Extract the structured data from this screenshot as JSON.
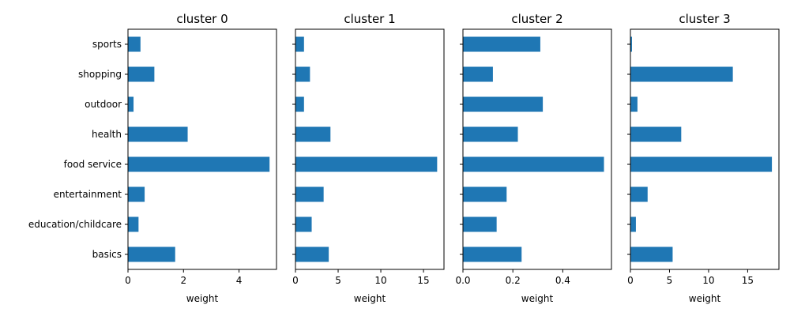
{
  "colors": {
    "bar": "#1f77b4",
    "axis": "#000000",
    "background": "#ffffff"
  },
  "chart_data": [
    {
      "type": "bar",
      "orientation": "horizontal",
      "title": "cluster 0",
      "xlabel": "weight",
      "categories": [
        "sports",
        "shopping",
        "outdoor",
        "health",
        "food service",
        "entertainment",
        "education/childcare",
        "basics"
      ],
      "values": [
        0.45,
        0.95,
        0.2,
        2.15,
        5.1,
        0.6,
        0.38,
        1.7
      ],
      "xlim": [
        0,
        5.35
      ],
      "xticks": [
        0,
        2,
        4
      ],
      "xtick_labels": [
        "0",
        "2",
        "4"
      ],
      "show_category_labels": true
    },
    {
      "type": "bar",
      "orientation": "horizontal",
      "title": "cluster 1",
      "xlabel": "weight",
      "categories": [
        "sports",
        "shopping",
        "outdoor",
        "health",
        "food service",
        "entertainment",
        "education/childcare",
        "basics"
      ],
      "values": [
        1.0,
        1.7,
        1.0,
        4.1,
        16.6,
        3.3,
        1.9,
        3.9
      ],
      "xlim": [
        0,
        17.4
      ],
      "xticks": [
        0,
        5,
        10,
        15
      ],
      "xtick_labels": [
        "0",
        "5",
        "10",
        "15"
      ],
      "show_category_labels": false
    },
    {
      "type": "bar",
      "orientation": "horizontal",
      "title": "cluster 2",
      "xlabel": "weight",
      "categories": [
        "sports",
        "shopping",
        "outdoor",
        "health",
        "food service",
        "entertainment",
        "education/childcare",
        "basics"
      ],
      "values": [
        0.31,
        0.12,
        0.32,
        0.22,
        0.565,
        0.175,
        0.135,
        0.235
      ],
      "xlim": [
        0,
        0.595
      ],
      "xticks": [
        0,
        0.2,
        0.4
      ],
      "xtick_labels": [
        "0.0",
        "0.2",
        "0.4"
      ],
      "show_category_labels": false
    },
    {
      "type": "bar",
      "orientation": "horizontal",
      "title": "cluster 3",
      "xlabel": "weight",
      "categories": [
        "sports",
        "shopping",
        "outdoor",
        "health",
        "food service",
        "entertainment",
        "education/childcare",
        "basics"
      ],
      "values": [
        0.2,
        13.1,
        0.9,
        6.5,
        18.1,
        2.2,
        0.7,
        5.4
      ],
      "xlim": [
        0,
        19.0
      ],
      "xticks": [
        0,
        5,
        10,
        15
      ],
      "xtick_labels": [
        "0",
        "5",
        "10",
        "15"
      ],
      "show_category_labels": false
    }
  ]
}
